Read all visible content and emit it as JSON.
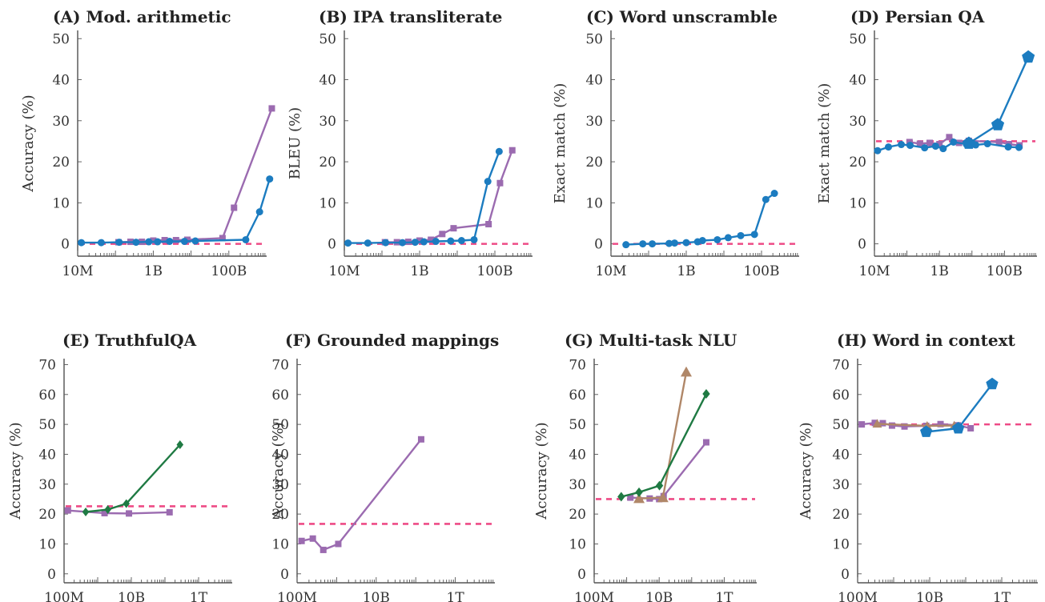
{
  "colors": {
    "purple": "#9b6bb0",
    "blue": "#1c7cc0",
    "green": "#1f7a43",
    "brown": "#b08768",
    "random_baseline": "#ee4b86"
  },
  "chart_data": [
    {
      "id": "A",
      "type": "line",
      "title": "(A) Mod. arithmetic",
      "ylabel": "Accuracy (%)",
      "xscale": "log",
      "xlim": [
        10000000.0,
        1000000000000.0
      ],
      "xticks": [
        {
          "v": 10000000.0,
          "label": "10M"
        },
        {
          "v": 1000000000.0,
          "label": "1B"
        },
        {
          "v": 100000000000.0,
          "label": "100B"
        }
      ],
      "ylim": [
        -3,
        52
      ],
      "yticks": [
        0,
        10,
        20,
        30,
        40,
        50
      ],
      "baseline": 0,
      "series": [
        {
          "color": "purple",
          "marker": "square",
          "size": 8,
          "points": [
            [
              120000000.0,
              0.4
            ],
            [
              250000000.0,
              0.5
            ],
            [
              500000000.0,
              0.5
            ],
            [
              1000000000.0,
              0.8
            ],
            [
              2000000000.0,
              0.9
            ],
            [
              4000000000.0,
              0.9
            ],
            [
              8000000000.0,
              1.0
            ],
            [
              68000000000.0,
              1.4
            ],
            [
              137000000000.0,
              8.8
            ],
            [
              1370000000000.0,
              33
            ]
          ]
        },
        {
          "color": "blue",
          "marker": "circle",
          "size": 9,
          "points": [
            [
              12500000.0,
              0.3
            ],
            [
              42000000.0,
              0.3
            ],
            [
              125000000.0,
              0.4
            ],
            [
              350000000.0,
              0.4
            ],
            [
              760000000.0,
              0.5
            ],
            [
              1300000000.0,
              0.5
            ],
            [
              2700000000.0,
              0.6
            ],
            [
              6700000000.0,
              0.6
            ],
            [
              13000000000.0,
              0.7
            ],
            [
              280000000000.0,
              1.0
            ],
            [
              650000000000.0,
              7.8
            ],
            [
              1200000000000.0,
              15.8
            ]
          ]
        }
      ]
    },
    {
      "id": "B",
      "type": "line",
      "title": "(B) IPA transliterate",
      "ylabel": "BLEU (%)",
      "xscale": "log",
      "xlim": [
        10000000.0,
        1000000000000.0
      ],
      "xticks": [
        {
          "v": 10000000.0,
          "label": "10M"
        },
        {
          "v": 1000000000.0,
          "label": "1B"
        },
        {
          "v": 100000000000.0,
          "label": "100B"
        }
      ],
      "ylim": [
        -3,
        52
      ],
      "yticks": [
        0,
        10,
        20,
        30,
        40,
        50
      ],
      "baseline": 0,
      "series": [
        {
          "color": "purple",
          "marker": "square",
          "size": 8,
          "points": [
            [
              120000000.0,
              0.4
            ],
            [
              250000000.0,
              0.4
            ],
            [
              500000000.0,
              0.5
            ],
            [
              1000000000.0,
              0.8
            ],
            [
              2000000000.0,
              1.0
            ],
            [
              4000000000.0,
              2.4
            ],
            [
              8000000000.0,
              3.8
            ],
            [
              68000000000.0,
              4.8
            ],
            [
              137000000000.0,
              14.8
            ],
            [
              290000000000.0,
              22.8
            ]
          ]
        },
        {
          "color": "blue",
          "marker": "circle",
          "size": 9,
          "points": [
            [
              12500000.0,
              0.2
            ],
            [
              42000000.0,
              0.2
            ],
            [
              125000000.0,
              0.3
            ],
            [
              350000000.0,
              0.3
            ],
            [
              760000000.0,
              0.4
            ],
            [
              1300000000.0,
              0.5
            ],
            [
              2700000000.0,
              0.6
            ],
            [
              6700000000.0,
              0.7
            ],
            [
              13000000000.0,
              0.8
            ],
            [
              28000000000.0,
              1.0
            ],
            [
              65000000000.0,
              15.2
            ],
            [
              130000000000.0,
              22.5
            ]
          ]
        }
      ]
    },
    {
      "id": "C",
      "type": "line",
      "title": "(C) Word unscramble",
      "ylabel": "Exact match (%)",
      "xscale": "log",
      "xlim": [
        10000000.0,
        1000000000000.0
      ],
      "xticks": [
        {
          "v": 10000000.0,
          "label": "10M"
        },
        {
          "v": 1000000000.0,
          "label": "1B"
        },
        {
          "v": 100000000000.0,
          "label": "100B"
        }
      ],
      "ylim": [
        -3,
        52
      ],
      "yticks": [
        0,
        10,
        20,
        30,
        40,
        50
      ],
      "baseline": 0,
      "series": [
        {
          "color": "blue",
          "marker": "circle",
          "size": 9,
          "points": [
            [
              25000000.0,
              -0.2
            ],
            [
              70000000.0,
              0.0
            ],
            [
              125000000.0,
              0.0
            ],
            [
              350000000.0,
              0.1
            ],
            [
              490000000.0,
              0.2
            ],
            [
              1000000000.0,
              0.3
            ],
            [
              2000000000.0,
              0.5
            ],
            [
              2700000000.0,
              0.8
            ],
            [
              6700000000.0,
              1.0
            ],
            [
              13000000000.0,
              1.5
            ],
            [
              28000000000.0,
              2.0
            ],
            [
              65000000000.0,
              2.3
            ],
            [
              130000000000.0,
              10.8
            ],
            [
              220000000000.0,
              12.3
            ]
          ]
        }
      ]
    },
    {
      "id": "D",
      "type": "line",
      "title": "(D) Persian QA",
      "ylabel": "Exact match (%)",
      "xscale": "log",
      "xlim": [
        10000000.0,
        1000000000000.0
      ],
      "xticks": [
        {
          "v": 10000000.0,
          "label": "10M"
        },
        {
          "v": 1000000000.0,
          "label": "1B"
        },
        {
          "v": 100000000000.0,
          "label": "100B"
        }
      ],
      "ylim": [
        -3,
        52
      ],
      "yticks": [
        0,
        10,
        20,
        30,
        40,
        50
      ],
      "baseline": 25,
      "series": [
        {
          "color": "purple",
          "marker": "square",
          "size": 8,
          "points": [
            [
              120000000.0,
              24.8
            ],
            [
              250000000.0,
              24.4
            ],
            [
              500000000.0,
              24.6
            ],
            [
              1000000000.0,
              24.3
            ],
            [
              2000000000.0,
              26.0
            ],
            [
              4000000000.0,
              24.6
            ],
            [
              8000000000.0,
              25.1
            ],
            [
              68000000000.0,
              24.8
            ],
            [
              137000000000.0,
              24.3
            ],
            [
              290000000000.0,
              24.0
            ]
          ]
        },
        {
          "color": "blue",
          "marker": "circle",
          "size": 9,
          "points": [
            [
              12500000.0,
              22.7
            ],
            [
              27000000.0,
              23.6
            ],
            [
              67000000.0,
              24.2
            ],
            [
              125000000.0,
              24.0
            ],
            [
              350000000.0,
              23.4
            ],
            [
              760000000.0,
              23.8
            ],
            [
              1300000000.0,
              23.2
            ],
            [
              2700000000.0,
              24.8
            ],
            [
              6700000000.0,
              24.3
            ],
            [
              13000000000.0,
              24.1
            ],
            [
              30000000000.0,
              24.4
            ],
            [
              130000000000.0,
              23.6
            ],
            [
              280000000000.0,
              23.5
            ]
          ]
        },
        {
          "color": "blue",
          "marker": "pentagon",
          "size": 17,
          "points": [
            [
              8000000000.0,
              24.5
            ],
            [
              62000000000.0,
              29.0
            ],
            [
              540000000000.0,
              45.5
            ]
          ]
        }
      ]
    },
    {
      "id": "E",
      "type": "line",
      "title": "(E) TruthfulQA",
      "ylabel": "Accuracy (%)",
      "xscale": "log",
      "xlim": [
        100000000.0,
        10000000000000.0
      ],
      "xticks": [
        {
          "v": 100000000.0,
          "label": "100M"
        },
        {
          "v": 10000000000.0,
          "label": "10B"
        },
        {
          "v": 1000000000000.0,
          "label": "1T"
        }
      ],
      "ylim": [
        -3,
        72
      ],
      "yticks": [
        0,
        10,
        20,
        30,
        40,
        50,
        60,
        70
      ],
      "baseline": 22.6,
      "series": [
        {
          "color": "purple",
          "marker": "square",
          "size": 8,
          "points": [
            [
              130000000.0,
              21.2
            ],
            [
              1600000000.0,
              20.3
            ],
            [
              8500000000.0,
              20.2
            ],
            [
              137000000000.0,
              20.6
            ]
          ]
        },
        {
          "color": "green",
          "marker": "diamond",
          "size": 11,
          "points": [
            [
              440000000.0,
              20.7
            ],
            [
              2000000000.0,
              21.5
            ],
            [
              7100000000.0,
              23.5
            ],
            [
              280000000000.0,
              43.2
            ]
          ]
        }
      ]
    },
    {
      "id": "F",
      "type": "line",
      "title": "(F) Grounded mappings",
      "ylabel": "Accuracy (%)",
      "xscale": "log",
      "xlim": [
        100000000.0,
        10000000000000.0
      ],
      "xticks": [
        {
          "v": 100000000.0,
          "label": "100M"
        },
        {
          "v": 10000000000.0,
          "label": "10B"
        },
        {
          "v": 1000000000000.0,
          "label": "1T"
        }
      ],
      "ylim": [
        -3,
        72
      ],
      "yticks": [
        0,
        10,
        20,
        30,
        40,
        50,
        60,
        70
      ],
      "baseline": 16.7,
      "series": [
        {
          "color": "purple",
          "marker": "square",
          "size": 8,
          "points": [
            [
              130000000.0,
              11.0
            ],
            [
              250000000.0,
              11.8
            ],
            [
              460000000.0,
              8.0
            ],
            [
              1100000000.0,
              10.0
            ],
            [
              137000000000.0,
              45.0
            ]
          ]
        }
      ]
    },
    {
      "id": "G",
      "type": "line",
      "title": "(G) Multi-task NLU",
      "ylabel": "Accuracy (%)",
      "xscale": "log",
      "xlim": [
        100000000.0,
        10000000000000.0
      ],
      "xticks": [
        {
          "v": 100000000.0,
          "label": "100M"
        },
        {
          "v": 10000000000.0,
          "label": "10B"
        },
        {
          "v": 1000000000000.0,
          "label": "1T"
        }
      ],
      "ylim": [
        -3,
        72
      ],
      "yticks": [
        0,
        10,
        20,
        30,
        40,
        50,
        60,
        70
      ],
      "baseline": 25,
      "series": [
        {
          "color": "purple",
          "marker": "square",
          "size": 8,
          "points": [
            [
              1300000000.0,
              25.5
            ],
            [
              5100000000.0,
              25.2
            ],
            [
              10000000000.0,
              25.0
            ],
            [
              13700000000.0,
              26.0
            ],
            [
              280000000000.0,
              44.0
            ]
          ]
        },
        {
          "color": "brown",
          "marker": "triangle",
          "size": 14,
          "points": [
            [
              2400000000.0,
              25.2
            ],
            [
              13000000000.0,
              25.5
            ],
            [
              68000000000.0,
              67.5
            ]
          ]
        },
        {
          "color": "green",
          "marker": "diamond",
          "size": 12,
          "points": [
            [
              680000000.0,
              25.8
            ],
            [
              2400000000.0,
              27.3
            ],
            [
              10200000000.0,
              29.5
            ],
            [
              280000000000.0,
              60.2
            ]
          ]
        }
      ]
    },
    {
      "id": "H",
      "type": "line",
      "title": "(H) Word in context",
      "ylabel": "Accuracy (%)",
      "xscale": "log",
      "xlim": [
        100000000.0,
        10000000000000.0
      ],
      "xticks": [
        {
          "v": 100000000.0,
          "label": "100M"
        },
        {
          "v": 10000000000.0,
          "label": "10B"
        },
        {
          "v": 1000000000000.0,
          "label": "1T"
        }
      ],
      "ylim": [
        -3,
        72
      ],
      "yticks": [
        0,
        10,
        20,
        30,
        40,
        50,
        60,
        70
      ],
      "baseline": 50,
      "series": [
        {
          "color": "purple",
          "marker": "square",
          "size": 8,
          "points": [
            [
              130000000.0,
              50.0
            ],
            [
              300000000.0,
              50.5
            ],
            [
              500000000.0,
              50.4
            ],
            [
              900000000.0,
              49.6
            ],
            [
              2000000000.0,
              49.3
            ],
            [
              8000000000.0,
              49.5
            ],
            [
              20000000000.0,
              50.1
            ],
            [
              60000000000.0,
              49.7
            ],
            [
              137000000000.0,
              48.7
            ]
          ]
        },
        {
          "color": "brown",
          "marker": "triangle",
          "size": 12,
          "points": [
            [
              350000000.0,
              50.2
            ],
            [
              8500000000.0,
              49.5
            ],
            [
              48000000000.0,
              49.6
            ]
          ]
        },
        {
          "color": "blue",
          "marker": "pentagon",
          "size": 16,
          "points": [
            [
              8000000000.0,
              47.5
            ],
            [
              62000000000.0,
              48.7
            ],
            [
              540000000000.0,
              63.5
            ]
          ]
        }
      ]
    }
  ]
}
